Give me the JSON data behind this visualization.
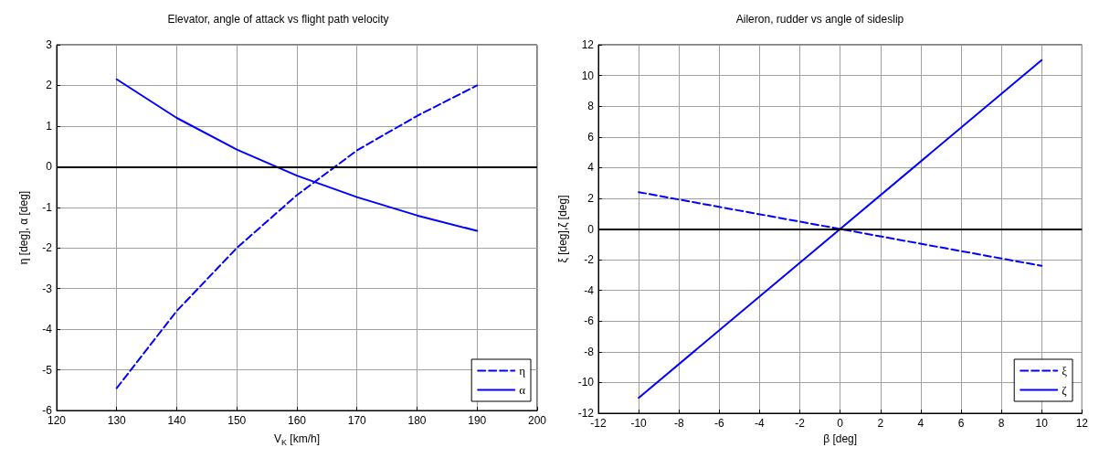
{
  "chart_data": [
    {
      "type": "line",
      "title": "Elevator, angle of attack vs flight path velocity",
      "xlabel": "V$_{K}$ [km/h]",
      "ylabel": "η [deg], α [deg]",
      "x": [
        130,
        140,
        150,
        160,
        170,
        180,
        190
      ],
      "series": [
        {
          "name": "η",
          "color": "#0000ff",
          "line_style": "dashed",
          "values": [
            -5.45,
            -3.55,
            -2.0,
            -0.7,
            0.4,
            1.25,
            2.0
          ]
        },
        {
          "name": "α",
          "color": "#0000ff",
          "line_style": "solid",
          "values": [
            2.15,
            1.2,
            0.42,
            -0.22,
            -0.75,
            -1.2,
            -1.58
          ]
        }
      ],
      "xlim": [
        120,
        200
      ],
      "xticks": [
        120,
        130,
        140,
        150,
        160,
        170,
        180,
        190,
        200
      ],
      "ylim": [
        -6,
        3
      ],
      "yticks": [
        -6,
        -5,
        -4,
        -3,
        -2,
        -1,
        0,
        1,
        2,
        3
      ],
      "ref_lines": [
        {
          "axis": "y",
          "value": 0,
          "color": "#000000",
          "line_style": "solid"
        }
      ],
      "grid": true,
      "legend": "bottom right",
      "marker": "none"
    },
    {
      "type": "line",
      "title": "Aileron, rudder vs angle of sideslip",
      "xlabel": "β [deg]",
      "ylabel": "ξ [deg],ζ [deg]",
      "x": [
        -10,
        10
      ],
      "series": [
        {
          "name": "ξ",
          "color": "#0000ff",
          "line_style": "dashed",
          "values": [
            2.4,
            -2.4
          ]
        },
        {
          "name": "ζ",
          "color": "#0000ff",
          "line_style": "solid",
          "values": [
            -11,
            11
          ]
        }
      ],
      "xlim": [
        -12,
        12
      ],
      "xticks": [
        -12,
        -10,
        -8,
        -6,
        -4,
        -2,
        0,
        2,
        4,
        6,
        8,
        10,
        12
      ],
      "ylim": [
        -12,
        12
      ],
      "yticks": [
        -12,
        -10,
        -8,
        -6,
        -4,
        -2,
        0,
        2,
        4,
        6,
        8,
        10,
        12
      ],
      "ref_lines": [
        {
          "axis": "y",
          "value": 0,
          "color": "#000000",
          "line_style": "solid"
        }
      ],
      "grid": true,
      "legend": "bottom right",
      "marker": "none"
    }
  ]
}
